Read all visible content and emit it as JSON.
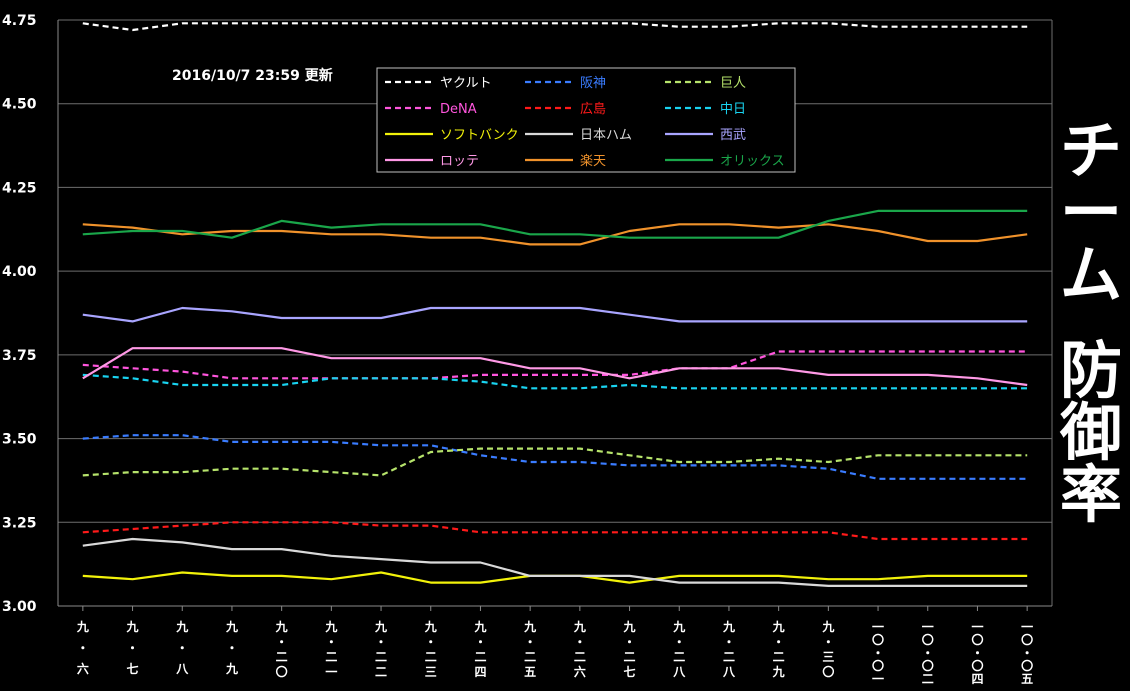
{
  "update_label": "2016/10/7   23:59 更新",
  "side_title": {
    "line1": [
      "チ",
      "ー",
      "ム"
    ],
    "line2": [
      "防",
      "御",
      "率"
    ]
  },
  "chart_data": {
    "type": "line",
    "title": "チーム 防御率",
    "ylim": [
      3.0,
      4.75
    ],
    "yticks": [
      "3.00",
      "3.25",
      "3.50",
      "3.75",
      "4.00",
      "4.25",
      "4.50",
      "4.75"
    ],
    "grid": true,
    "legend_position": "top-center",
    "categories": [
      [
        "九",
        "・",
        "六"
      ],
      [
        "九",
        "・",
        "七"
      ],
      [
        "九",
        "・",
        "八"
      ],
      [
        "九",
        "・",
        "九"
      ],
      [
        "九",
        "・",
        "二",
        "〇"
      ],
      [
        "九",
        "・",
        "二",
        "一"
      ],
      [
        "九",
        "・",
        "二",
        "二"
      ],
      [
        "九",
        "・",
        "二",
        "三"
      ],
      [
        "九",
        "・",
        "二",
        "四"
      ],
      [
        "九",
        "・",
        "二",
        "五"
      ],
      [
        "九",
        "・",
        "二",
        "六"
      ],
      [
        "九",
        "・",
        "二",
        "七"
      ],
      [
        "九",
        "・",
        "二",
        "八"
      ],
      [
        "九",
        "・",
        "二",
        "八"
      ],
      [
        "九",
        "・",
        "二",
        "九"
      ],
      [
        "九",
        "・",
        "三",
        "〇"
      ],
      [
        "一",
        "〇",
        "・",
        "〇",
        "一"
      ],
      [
        "一",
        "〇",
        "・",
        "〇",
        "二"
      ],
      [
        "一",
        "〇",
        "・",
        "〇",
        "四"
      ],
      [
        "一",
        "〇",
        "・",
        "〇",
        "五"
      ]
    ],
    "series": [
      {
        "name": "ヤクルト",
        "color": "#ffffff",
        "dash": true,
        "values": [
          4.74,
          4.72,
          4.74,
          4.74,
          4.74,
          4.74,
          4.74,
          4.74,
          4.74,
          4.74,
          4.74,
          4.74,
          4.73,
          4.73,
          4.74,
          4.74,
          4.73,
          4.73,
          4.73,
          4.73
        ]
      },
      {
        "name": "阪神",
        "color": "#3a7cff",
        "dash": true,
        "values": [
          3.5,
          3.51,
          3.51,
          3.49,
          3.49,
          3.49,
          3.48,
          3.48,
          3.45,
          3.43,
          3.43,
          3.42,
          3.42,
          3.42,
          3.42,
          3.41,
          3.38,
          3.38,
          3.38,
          3.38
        ]
      },
      {
        "name": "巨人",
        "color": "#b6e36b",
        "dash": true,
        "values": [
          3.39,
          3.4,
          3.4,
          3.41,
          3.41,
          3.4,
          3.39,
          3.46,
          3.47,
          3.47,
          3.47,
          3.45,
          3.43,
          3.43,
          3.44,
          3.43,
          3.45,
          3.45,
          3.45,
          3.45
        ]
      },
      {
        "name": "DeNA",
        "color": "#ff55dd",
        "dash": true,
        "values": [
          3.72,
          3.71,
          3.7,
          3.68,
          3.68,
          3.68,
          3.68,
          3.68,
          3.69,
          3.69,
          3.69,
          3.69,
          3.71,
          3.71,
          3.76,
          3.76,
          3.76,
          3.76,
          3.76,
          3.76
        ]
      },
      {
        "name": "広島",
        "color": "#ff1a1a",
        "dash": true,
        "values": [
          3.22,
          3.23,
          3.24,
          3.25,
          3.25,
          3.25,
          3.24,
          3.24,
          3.22,
          3.22,
          3.22,
          3.22,
          3.22,
          3.22,
          3.22,
          3.22,
          3.2,
          3.2,
          3.2,
          3.2
        ]
      },
      {
        "name": "中日",
        "color": "#19d3f0",
        "dash": true,
        "values": [
          3.69,
          3.68,
          3.66,
          3.66,
          3.66,
          3.68,
          3.68,
          3.68,
          3.67,
          3.65,
          3.65,
          3.66,
          3.65,
          3.65,
          3.65,
          3.65,
          3.65,
          3.65,
          3.65,
          3.65
        ]
      },
      {
        "name": "ソフトバンク",
        "color": "#f2f20a",
        "dash": false,
        "values": [
          3.09,
          3.08,
          3.1,
          3.09,
          3.09,
          3.08,
          3.1,
          3.07,
          3.07,
          3.09,
          3.09,
          3.07,
          3.09,
          3.09,
          3.09,
          3.08,
          3.08,
          3.09,
          3.09,
          3.09
        ]
      },
      {
        "name": "日本ハム",
        "color": "#d9d9d9",
        "dash": false,
        "values": [
          3.18,
          3.2,
          3.19,
          3.17,
          3.17,
          3.15,
          3.14,
          3.13,
          3.13,
          3.09,
          3.09,
          3.09,
          3.07,
          3.07,
          3.07,
          3.06,
          3.06,
          3.06,
          3.06,
          3.06
        ]
      },
      {
        "name": "西武",
        "color": "#a9a5ff",
        "dash": false,
        "values": [
          3.87,
          3.85,
          3.89,
          3.88,
          3.86,
          3.86,
          3.86,
          3.89,
          3.89,
          3.89,
          3.89,
          3.87,
          3.85,
          3.85,
          3.85,
          3.85,
          3.85,
          3.85,
          3.85,
          3.85
        ]
      },
      {
        "name": "ロッテ",
        "color": "#ff99e6",
        "dash": false,
        "values": [
          3.68,
          3.77,
          3.77,
          3.77,
          3.77,
          3.74,
          3.74,
          3.74,
          3.74,
          3.71,
          3.71,
          3.68,
          3.71,
          3.71,
          3.71,
          3.69,
          3.69,
          3.69,
          3.68,
          3.66
        ]
      },
      {
        "name": "楽天",
        "color": "#f0922b",
        "dash": false,
        "values": [
          4.14,
          4.13,
          4.11,
          4.12,
          4.12,
          4.11,
          4.11,
          4.1,
          4.1,
          4.08,
          4.08,
          4.12,
          4.14,
          4.14,
          4.13,
          4.14,
          4.12,
          4.09,
          4.09,
          4.11
        ]
      },
      {
        "name": "オリックス",
        "color": "#1aa64a",
        "dash": false,
        "values": [
          4.11,
          4.12,
          4.12,
          4.1,
          4.15,
          4.13,
          4.14,
          4.14,
          4.14,
          4.11,
          4.11,
          4.1,
          4.1,
          4.1,
          4.1,
          4.15,
          4.18,
          4.18,
          4.18,
          4.18
        ]
      }
    ]
  }
}
